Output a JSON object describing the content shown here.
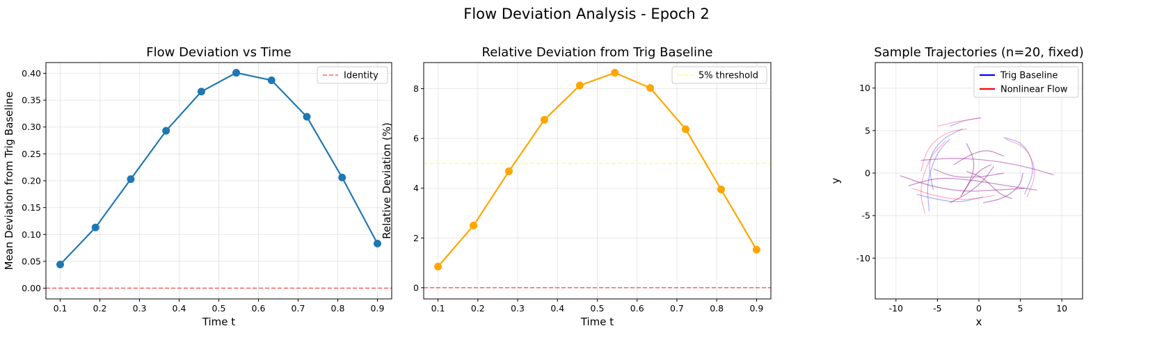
{
  "figure": {
    "title": "Flow Deviation Analysis - Epoch 2"
  },
  "chart_data": [
    {
      "type": "line",
      "title": "Flow Deviation vs Time",
      "xlabel": "Time t",
      "ylabel": "Mean Deviation from Trig Baseline",
      "xlim": [
        0.064,
        0.936
      ],
      "ylim": [
        -0.02,
        0.42
      ],
      "xticks": [
        0.1,
        0.2,
        0.3,
        0.4,
        0.5,
        0.6,
        0.7,
        0.8,
        0.9
      ],
      "yticks": [
        0.0,
        0.05,
        0.1,
        0.15,
        0.2,
        0.25,
        0.3,
        0.35,
        0.4
      ],
      "ytick_decimals": 2,
      "xtick_decimals": 1,
      "grid": true,
      "legend_position": "top-right",
      "series": [
        {
          "x": [
            0.1,
            0.189,
            0.278,
            0.367,
            0.456,
            0.544,
            0.633,
            0.722,
            0.811,
            0.9
          ],
          "y": [
            0.044,
            0.113,
            0.203,
            0.293,
            0.366,
            0.401,
            0.387,
            0.319,
            0.206,
            0.083
          ],
          "color": "#1f77b4",
          "marker": "circle"
        }
      ],
      "reference_lines": [
        {
          "name": "Identity",
          "y": 0.0,
          "color": "#ff0000",
          "opacity": 0.6,
          "style": "dashed"
        }
      ]
    },
    {
      "type": "line",
      "title": "Relative Deviation from Trig Baseline",
      "xlabel": "Time t",
      "ylabel": "Relative Deviation (%)",
      "xlim": [
        0.064,
        0.936
      ],
      "ylim": [
        -0.45,
        9.05
      ],
      "xticks": [
        0.1,
        0.2,
        0.3,
        0.4,
        0.5,
        0.6,
        0.7,
        0.8,
        0.9
      ],
      "yticks": [
        0,
        2,
        4,
        6,
        8
      ],
      "ytick_decimals": 0,
      "xtick_decimals": 1,
      "grid": true,
      "legend_position": "top-right",
      "series": [
        {
          "x": [
            0.1,
            0.189,
            0.278,
            0.367,
            0.456,
            0.544,
            0.633,
            0.722,
            0.811,
            0.9
          ],
          "y": [
            0.85,
            2.5,
            4.68,
            6.75,
            8.13,
            8.64,
            8.03,
            6.37,
            3.95,
            1.53
          ],
          "color": "#ffa500",
          "marker": "circle"
        }
      ],
      "reference_lines": [
        {
          "name": "5% threshold",
          "y": 5.0,
          "color": "#ffff00",
          "opacity": 0.5,
          "style": "dashed"
        },
        {
          "name": "",
          "y": 0.0,
          "color": "#ff0000",
          "opacity": 0.6,
          "style": "dashed"
        }
      ]
    },
    {
      "type": "line",
      "title": "Sample Trajectories (n=20, fixed)",
      "xlabel": "x",
      "ylabel": "y",
      "xlim": [
        -12.5,
        12.5
      ],
      "ylim": [
        -14.8,
        13.0
      ],
      "xticks": [
        -10,
        -5,
        0,
        5,
        10
      ],
      "yticks": [
        -10,
        -5,
        0,
        5,
        10
      ],
      "ytick_decimals": 0,
      "xtick_decimals": 0,
      "grid": true,
      "legend_position": "top-right",
      "legend": [
        {
          "name": "Trig Baseline",
          "color": "#0000ff"
        },
        {
          "name": "Nonlinear Flow",
          "color": "#ff0000"
        }
      ],
      "trajectories": [
        {
          "kind": "trig",
          "points": [
            [
              -5.5,
              -2.0
            ],
            [
              -6.2,
              1.5
            ],
            [
              -4.5,
              4.0
            ],
            [
              -2.0,
              5.2
            ]
          ]
        },
        {
          "kind": "trig",
          "points": [
            [
              -6.0,
              -4.5
            ],
            [
              -6.3,
              -1.0
            ],
            [
              -5.0,
              2.5
            ],
            [
              -3.5,
              4.0
            ]
          ]
        },
        {
          "kind": "trig",
          "points": [
            [
              3.0,
              4.2
            ],
            [
              5.5,
              3.5
            ],
            [
              6.8,
              0.5
            ],
            [
              5.5,
              -2.5
            ]
          ]
        },
        {
          "kind": "trig",
          "points": [
            [
              -3.5,
              5.5
            ],
            [
              -1.8,
              6.2
            ],
            [
              0.2,
              6.5
            ]
          ]
        },
        {
          "kind": "trig",
          "points": [
            [
              -7.5,
              -2.5
            ],
            [
              -5.5,
              -3.0
            ],
            [
              -2.5,
              -3.5
            ],
            [
              0.5,
              -2.8
            ]
          ]
        },
        {
          "kind": "flow",
          "points": [
            [
              -6.5,
              -4.8
            ],
            [
              -7.2,
              -2.0
            ],
            [
              -6.0,
              1.8
            ],
            [
              -4.0,
              3.8
            ]
          ]
        },
        {
          "kind": "flow",
          "points": [
            [
              -5.0,
              5.5
            ],
            [
              -3.0,
              6.0
            ],
            [
              -1.0,
              6.3
            ],
            [
              0.3,
              6.5
            ]
          ]
        },
        {
          "kind": "flow",
          "points": [
            [
              3.2,
              4.0
            ],
            [
              5.8,
              3.0
            ],
            [
              7.0,
              0.0
            ],
            [
              5.8,
              -2.8
            ]
          ]
        },
        {
          "kind": "flow",
          "points": [
            [
              -7.0,
              0.2
            ],
            [
              -6.2,
              3.0
            ],
            [
              -4.0,
              4.8
            ],
            [
              -1.5,
              5.2
            ]
          ]
        },
        {
          "kind": "flow",
          "points": [
            [
              -8.0,
              -1.8
            ],
            [
              -5.0,
              -2.8
            ],
            [
              -1.5,
              -3.2
            ],
            [
              2.0,
              -2.6
            ]
          ]
        },
        {
          "kind": "mixed",
          "points": [
            [
              -9.5,
              -0.3
            ],
            [
              -6.0,
              -1.5
            ],
            [
              -2.0,
              -2.2
            ],
            [
              2.0,
              -2.0
            ],
            [
              5.5,
              -1.8
            ]
          ]
        },
        {
          "kind": "mixed",
          "points": [
            [
              -8.5,
              -1.5
            ],
            [
              -5.0,
              -0.5
            ],
            [
              -1.0,
              -0.8
            ],
            [
              3.5,
              -1.5
            ],
            [
              7.0,
              -2.0
            ]
          ]
        },
        {
          "kind": "mixed",
          "points": [
            [
              -7.0,
              1.5
            ],
            [
              -3.0,
              1.8
            ],
            [
              1.5,
              1.5
            ],
            [
              5.5,
              0.8
            ],
            [
              9.0,
              -0.2
            ]
          ]
        },
        {
          "kind": "mixed",
          "points": [
            [
              -5.5,
              0.5
            ],
            [
              -3.0,
              -0.5
            ],
            [
              0.0,
              -0.5
            ],
            [
              3.0,
              0.0
            ]
          ]
        },
        {
          "kind": "mixed",
          "points": [
            [
              -3.5,
              -3.5
            ],
            [
              -1.5,
              -2.5
            ],
            [
              0.5,
              -1.0
            ],
            [
              1.8,
              0.8
            ]
          ]
        },
        {
          "kind": "mixed",
          "points": [
            [
              -2.0,
              -2.5
            ],
            [
              -0.8,
              -0.5
            ],
            [
              -0.5,
              1.5
            ],
            [
              -1.5,
              3.5
            ]
          ]
        },
        {
          "kind": "mixed",
          "points": [
            [
              -3.0,
              1.0
            ],
            [
              -1.0,
              2.2
            ],
            [
              1.0,
              2.8
            ],
            [
              3.0,
              2.0
            ]
          ]
        },
        {
          "kind": "mixed",
          "points": [
            [
              0.5,
              -3.5
            ],
            [
              3.0,
              -3.0
            ],
            [
              5.0,
              -1.5
            ],
            [
              5.3,
              0.0
            ]
          ]
        },
        {
          "kind": "mixed",
          "points": [
            [
              -1.5,
              0.2
            ],
            [
              0.5,
              -0.5
            ],
            [
              2.5,
              -2.5
            ],
            [
              4.0,
              -3.0
            ]
          ]
        },
        {
          "kind": "mixed",
          "points": [
            [
              -2.2,
              -2.8
            ],
            [
              -1.2,
              -1.2
            ],
            [
              0.0,
              0.3
            ],
            [
              1.5,
              1.0
            ]
          ]
        }
      ]
    }
  ]
}
